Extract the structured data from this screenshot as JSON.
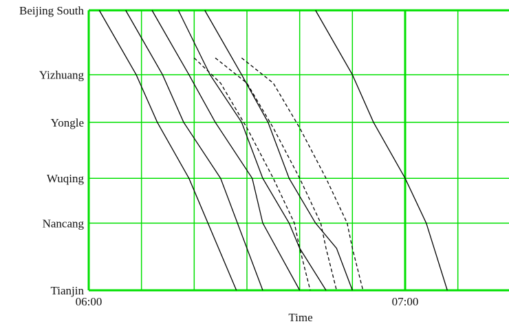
{
  "chart_data": {
    "type": "line",
    "title": "",
    "xlabel": "Time",
    "ylabel": "",
    "x_unit": "minutes after 06:00",
    "xlim": [
      0,
      90
    ],
    "x_ticks": [
      {
        "value": 0,
        "label": "06:00"
      },
      {
        "value": 60,
        "label": "07:00"
      }
    ],
    "x_grid_step": 10,
    "stations": [
      {
        "name": "Beijing South",
        "km": 0
      },
      {
        "name": "Yizhuang",
        "km": 23
      },
      {
        "name": "Yongle",
        "km": 40
      },
      {
        "name": "Wuqing",
        "km": 60
      },
      {
        "name": "Nancang",
        "km": 76
      },
      {
        "name": "Tianjin",
        "km": 100
      }
    ],
    "ylim": [
      0,
      100
    ],
    "grid": true,
    "colors": {
      "grid": "#00e000",
      "line": "#000000",
      "dotted_guide": "#22bb22"
    },
    "dotted_guide_x": 30,
    "series": [
      {
        "style": "solid",
        "x": [
          2,
          9,
          13,
          19,
          28
        ],
        "y": [
          0,
          23,
          40,
          60,
          100
        ]
      },
      {
        "style": "solid",
        "x": [
          7,
          14,
          18,
          25,
          33
        ],
        "y": [
          0,
          23,
          40,
          60,
          100
        ]
      },
      {
        "style": "solid",
        "x": [
          12,
          19,
          24,
          31,
          33,
          40
        ],
        "y": [
          0,
          23,
          40,
          60,
          76,
          100
        ]
      },
      {
        "style": "solid",
        "x": [
          17,
          23,
          29,
          33,
          38,
          40,
          45
        ],
        "y": [
          0,
          23,
          40,
          60,
          76,
          85,
          100
        ]
      },
      {
        "style": "solid",
        "x": [
          22,
          29,
          34,
          38,
          43,
          47,
          50
        ],
        "y": [
          0,
          23,
          40,
          60,
          76,
          85,
          100
        ]
      },
      {
        "style": "dashed",
        "x": [
          20,
          25,
          30,
          35,
          39,
          40,
          42
        ],
        "y": [
          17,
          26,
          42,
          60,
          76,
          85,
          100
        ]
      },
      {
        "style": "dashed",
        "x": [
          24,
          30,
          35,
          40,
          44,
          45,
          47
        ],
        "y": [
          17,
          26,
          42,
          60,
          76,
          85,
          100
        ]
      },
      {
        "style": "dashed",
        "x": [
          29,
          35,
          40,
          45,
          49,
          50,
          52
        ],
        "y": [
          17,
          26,
          42,
          60,
          76,
          85,
          100
        ]
      },
      {
        "style": "solid",
        "x": [
          43,
          50,
          54,
          60,
          64,
          68
        ],
        "y": [
          0,
          23,
          40,
          60,
          76,
          100
        ]
      }
    ]
  }
}
